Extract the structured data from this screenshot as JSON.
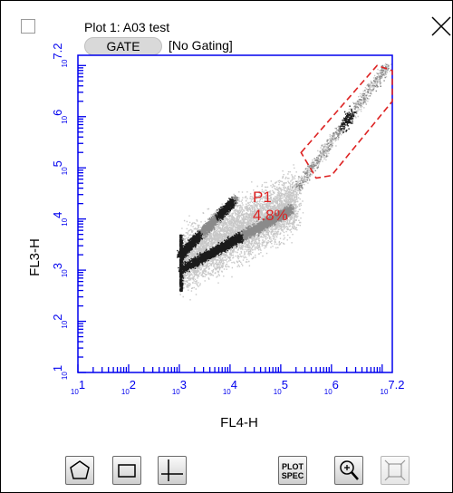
{
  "header": {
    "title": "Plot 1: A03 test",
    "gate_button_label": "GATE",
    "gating_status": "[No Gating]"
  },
  "gate": {
    "name": "P1",
    "percent": "4.8%",
    "color": "#dd2222"
  },
  "chart_data": {
    "type": "scatter",
    "subtype": "density-dot-plot",
    "xlabel": "FL4-H",
    "ylabel": "FL3-H",
    "x_scale": "log",
    "y_scale": "log",
    "xlim": [
      1,
      7.2
    ],
    "ylim": [
      1,
      7.2
    ],
    "x_ticks": [
      {
        "value": 1,
        "base": "10",
        "exp": "1"
      },
      {
        "value": 2,
        "base": "10",
        "exp": "2"
      },
      {
        "value": 3,
        "base": "10",
        "exp": "3"
      },
      {
        "value": 4,
        "base": "10",
        "exp": "4"
      },
      {
        "value": 5,
        "base": "10",
        "exp": "5"
      },
      {
        "value": 6,
        "base": "10",
        "exp": "6"
      },
      {
        "value": 7.2,
        "base": "10",
        "exp": "7.2"
      }
    ],
    "y_ticks": [
      {
        "value": 1,
        "base": "10",
        "exp": "1"
      },
      {
        "value": 2,
        "base": "10",
        "exp": "2"
      },
      {
        "value": 3,
        "base": "10",
        "exp": "3"
      },
      {
        "value": 4,
        "base": "10",
        "exp": "4"
      },
      {
        "value": 5,
        "base": "10",
        "exp": "5"
      },
      {
        "value": 6,
        "base": "10",
        "exp": "6"
      },
      {
        "value": 7.2,
        "base": "10",
        "exp": "7.2"
      }
    ],
    "axis_color": "#0000ee",
    "point_color_light": "#c8c8c8",
    "point_color_dense": "#1a1a1a",
    "gate_region": {
      "shape": "polygon",
      "points": [
        [
          5.4,
          5.3
        ],
        [
          6.9,
          7.0
        ],
        [
          7.2,
          6.9
        ],
        [
          7.2,
          6.3
        ],
        [
          6.0,
          4.85
        ],
        [
          5.7,
          4.8
        ]
      ]
    },
    "populations": [
      {
        "kind": "main-band",
        "from": [
          3.0,
          3.0
        ],
        "to": [
          5.2,
          4.2
        ]
      },
      {
        "kind": "upper-arm",
        "from": [
          3.0,
          3.3
        ],
        "to": [
          4.1,
          4.4
        ]
      },
      {
        "kind": "diagonal-tail",
        "from": [
          5.3,
          4.6
        ],
        "to": [
          7.1,
          7.0
        ]
      }
    ]
  },
  "toolbar": {
    "polygon_icon": "polygon-icon",
    "rectangle_icon": "rectangle-icon",
    "quadrant_icon": "quadrant-icon",
    "plot_spec_line1": "PLOT",
    "plot_spec_line2": "SPEC",
    "zoom_icon": "zoom-in-icon",
    "fit_icon": "fit-icon"
  }
}
